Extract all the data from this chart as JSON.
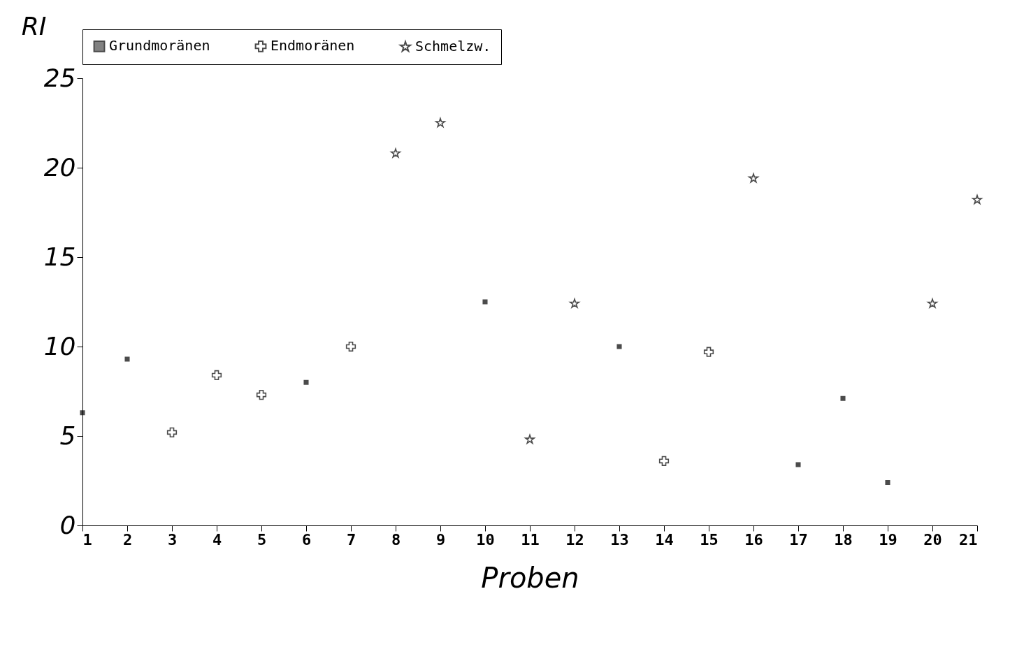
{
  "chart_data": {
    "type": "scatter",
    "xlabel": "Proben",
    "ylabel": "RI",
    "x": [
      1,
      2,
      3,
      4,
      5,
      6,
      7,
      8,
      9,
      10,
      11,
      12,
      13,
      14,
      15,
      16,
      17,
      18,
      19,
      20,
      21
    ],
    "series": [
      {
        "name": "Grundmoränen",
        "color": "#000000",
        "marker": "square",
        "values": [
          6.3,
          9.3,
          null,
          null,
          null,
          8.0,
          null,
          null,
          null,
          12.5,
          null,
          null,
          10.0,
          null,
          null,
          null,
          3.4,
          7.1,
          2.4,
          null,
          null
        ]
      },
      {
        "name": "Endmoränen",
        "color": "#000000",
        "marker": "cross",
        "values": [
          null,
          null,
          5.2,
          8.4,
          7.3,
          null,
          10.0,
          null,
          null,
          null,
          null,
          null,
          null,
          3.6,
          9.7,
          null,
          null,
          null,
          null,
          null,
          null
        ]
      },
      {
        "name": "Schmelzw.",
        "color": "#000000",
        "marker": "star",
        "values": [
          null,
          null,
          null,
          null,
          null,
          null,
          null,
          20.8,
          22.5,
          null,
          4.8,
          12.4,
          null,
          null,
          null,
          19.4,
          null,
          null,
          null,
          12.4,
          18.2
        ]
      }
    ],
    "xlim": [
      1,
      21
    ],
    "xticks": [
      1,
      2,
      3,
      4,
      5,
      6,
      7,
      8,
      9,
      10,
      11,
      12,
      13,
      14,
      15,
      16,
      17,
      18,
      19,
      20,
      21
    ],
    "ylim": [
      0,
      25
    ],
    "yticks": [
      0,
      5,
      10,
      15,
      20,
      25
    ],
    "grid": false,
    "legend": "top"
  }
}
